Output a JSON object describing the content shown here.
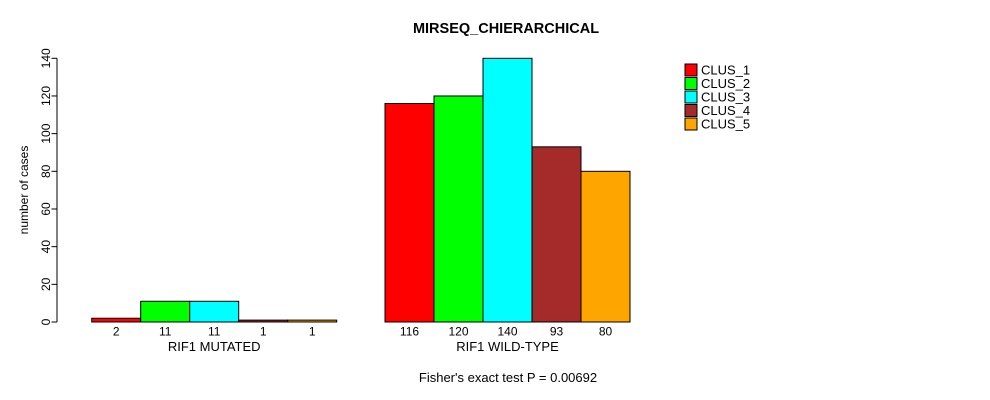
{
  "chart_data": {
    "type": "bar",
    "title": "MIRSEQ_CHIERARCHICAL",
    "ylabel": "number of cases",
    "xlabel": "",
    "annotation": "Fisher's exact test P = 0.00692",
    "groups": [
      {
        "label": "RIF1 MUTATED",
        "values": [
          2,
          11,
          11,
          1,
          1
        ]
      },
      {
        "label": "RIF1 WILD-TYPE",
        "values": [
          116,
          120,
          140,
          93,
          80
        ]
      }
    ],
    "series_names": [
      "CLUS_1",
      "CLUS_2",
      "CLUS_3",
      "CLUS_4",
      "CLUS_5"
    ],
    "colors": [
      "#ff0000",
      "#00ff00",
      "#00ffff",
      "#a52a2a",
      "#ffa500"
    ],
    "yticks": [
      0,
      20,
      40,
      60,
      80,
      100,
      120,
      140
    ],
    "ylim": [
      0,
      140
    ],
    "grid": false,
    "legend_position": "right",
    "bar_value_labels": true,
    "background": "#ffffff"
  }
}
